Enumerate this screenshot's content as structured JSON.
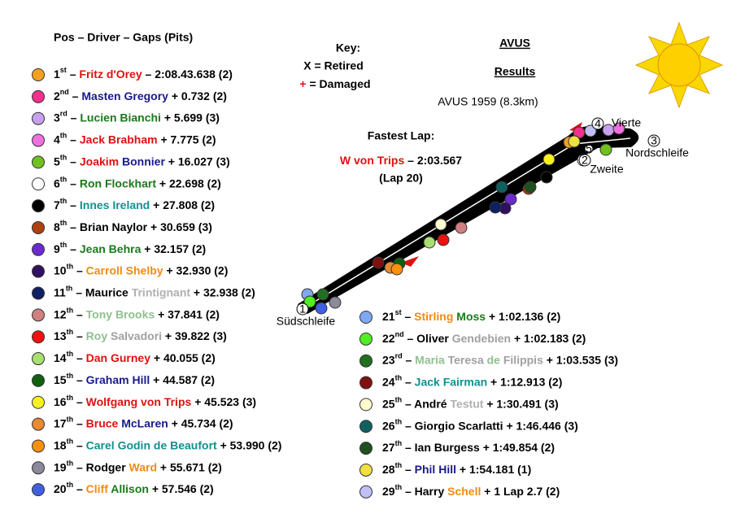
{
  "header": "Pos – Driver – Gaps (Pits)",
  "separator": "–",
  "key": {
    "title": "Key:",
    "retired": "X = Retired",
    "damaged_symbol": "+",
    "damaged": "= Damaged",
    "damaged_color": "#e01010"
  },
  "title": "AVUS",
  "title2": "Results",
  "subtitle": "AVUS 1959 (8.3km)",
  "fastest_lap": {
    "label": "Fastest Lap:",
    "driver": "W von Trips",
    "driver_color": "#e01010",
    "time": "– 2:03.567",
    "lap": "(Lap 20)"
  },
  "track_labels": {
    "south": "Südschleife",
    "north": "Nordschleife",
    "second": "Zweite",
    "fourth": "Vierte",
    "corners": [
      "1",
      "2",
      "3",
      "4",
      "5"
    ]
  },
  "results": [
    {
      "pos": 1,
      "suffix": "st",
      "name": [
        {
          "text": "Fritz d'Orey",
          "color": "#e01010"
        }
      ],
      "gap": "– 2:08.43.638 (2)",
      "marker": "#f5a020"
    },
    {
      "pos": 2,
      "suffix": "nd",
      "name": [
        {
          "text": "Masten Gregory",
          "color": "#1a1a8c"
        }
      ],
      "gap": "+ 0.732 (2)",
      "marker": "#f0308a"
    },
    {
      "pos": 3,
      "suffix": "rd",
      "name": [
        {
          "text": "Lucien Bianchi",
          "color": "#1a7a1a"
        }
      ],
      "gap": "+ 5.699 (3)",
      "marker": "#c8a0f0"
    },
    {
      "pos": 4,
      "suffix": "th",
      "name": [
        {
          "text": "Jack Brabham",
          "color": "#e01010"
        }
      ],
      "gap": "+ 7.775 (2)",
      "marker": "#f070e0"
    },
    {
      "pos": 5,
      "suffix": "th",
      "name": [
        {
          "text": "Joakim",
          "color": "#e01010"
        },
        {
          "text": "Bonnier",
          "color": "#1a1a8c"
        }
      ],
      "gap": "+ 16.027 (3)",
      "marker": "#70c020"
    },
    {
      "pos": 6,
      "suffix": "th",
      "name": [
        {
          "text": "Ron Flockhart",
          "color": "#1a7a1a"
        }
      ],
      "gap": "+ 22.698 (2)",
      "marker": "#ffffff"
    },
    {
      "pos": 7,
      "suffix": "th",
      "name": [
        {
          "text": "Innes Ireland",
          "color": "#109090"
        }
      ],
      "gap": "+ 27.808 (2)",
      "marker": "#000000"
    },
    {
      "pos": 8,
      "suffix": "th",
      "name": [
        {
          "text": "Brian Naylor",
          "color": "#000000"
        }
      ],
      "gap": "+ 30.659 (3)",
      "marker": "#b04010"
    },
    {
      "pos": 9,
      "suffix": "th",
      "name": [
        {
          "text": "Jean Behra",
          "color": "#1a7a1a"
        }
      ],
      "gap": "+ 32.157 (2)",
      "marker": "#6a2ad0"
    },
    {
      "pos": 10,
      "suffix": "th",
      "name": [
        {
          "text": "Carroll Shelby",
          "color": "#f08c10"
        }
      ],
      "gap": "+ 32.930 (2)",
      "marker": "#301060"
    },
    {
      "pos": 11,
      "suffix": "th",
      "name": [
        {
          "text": "Maurice",
          "color": "#000000"
        },
        {
          "text": "Trintignant",
          "color": "#b0b0b0"
        }
      ],
      "gap": "+ 32.938 (2)",
      "marker": "#102060"
    },
    {
      "pos": 12,
      "suffix": "th",
      "name": [
        {
          "text": "Tony Brooks",
          "color": "#90c090"
        }
      ],
      "gap": "+ 37.841 (2)",
      "marker": "#d08080"
    },
    {
      "pos": 13,
      "suffix": "th",
      "name": [
        {
          "text": "Roy",
          "color": "#90c090"
        },
        {
          "text": "Salvadori",
          "color": "#a0a0a0"
        }
      ],
      "gap": "+ 39.822 (3)",
      "marker": "#f01010"
    },
    {
      "pos": 14,
      "suffix": "th",
      "name": [
        {
          "text": "Dan Gurney",
          "color": "#e01010"
        }
      ],
      "gap": "+ 40.055 (2)",
      "marker": "#a8e070"
    },
    {
      "pos": 15,
      "suffix": "th",
      "name": [
        {
          "text": "Graham Hill",
          "color": "#1a1a8c"
        }
      ],
      "gap": "+ 44.587 (2)",
      "marker": "#106010"
    },
    {
      "pos": 16,
      "suffix": "th",
      "name": [
        {
          "text": "Wolfgang von Trips",
          "color": "#e01010"
        }
      ],
      "gap": "+ 45.523 (3)",
      "marker": "#f8f020"
    },
    {
      "pos": 17,
      "suffix": "th",
      "name": [
        {
          "text": "Bruce",
          "color": "#e01010"
        },
        {
          "text": "McLaren",
          "color": "#1a1a8c"
        }
      ],
      "gap": "+ 45.734 (2)",
      "marker": "#e88a30"
    },
    {
      "pos": 18,
      "suffix": "th",
      "name": [
        {
          "text": "Carel Godin de Beaufort",
          "color": "#109090"
        }
      ],
      "gap": "+ 53.990 (2)",
      "marker": "#f89010"
    },
    {
      "pos": 19,
      "suffix": "th",
      "name": [
        {
          "text": "Rodger",
          "color": "#000000"
        },
        {
          "text": "Ward",
          "color": "#f08c10"
        }
      ],
      "gap": "+ 55.671 (2)",
      "marker": "#8a8a9a"
    },
    {
      "pos": 20,
      "suffix": "th",
      "name": [
        {
          "text": "Cliff",
          "color": "#f08c10"
        },
        {
          "text": "Allison",
          "color": "#1a7a1a"
        }
      ],
      "gap": "+ 57.546 (2)",
      "marker": "#4060e0"
    },
    {
      "pos": 21,
      "suffix": "st",
      "name": [
        {
          "text": "Stirling",
          "color": "#f08c10"
        },
        {
          "text": "Moss",
          "color": "#1a7a1a"
        }
      ],
      "gap": "+ 1:02.136 (2)",
      "marker": "#80a8f0"
    },
    {
      "pos": 22,
      "suffix": "nd",
      "name": [
        {
          "text": "Oliver",
          "color": "#000000"
        },
        {
          "text": "Gendebien",
          "color": "#a0a0a0"
        }
      ],
      "gap": "+ 1:02.183 (2)",
      "marker": "#50f020"
    },
    {
      "pos": 23,
      "suffix": "rd",
      "name": [
        {
          "text": "Maria",
          "color": "#90c090"
        },
        {
          "text": "Teresa",
          "color": "#a0a0a0"
        },
        {
          "text": "de",
          "color": "#90c090"
        },
        {
          "text": "Filippis",
          "color": "#a0a0a0"
        }
      ],
      "gap": "+ 1:03.535 (3)",
      "marker": "#207020"
    },
    {
      "pos": 24,
      "suffix": "th",
      "name": [
        {
          "text": "Jack Fairman",
          "color": "#109090"
        }
      ],
      "gap": "+ 1:12.913 (2)",
      "marker": "#801010"
    },
    {
      "pos": 25,
      "suffix": "th",
      "name": [
        {
          "text": "André",
          "color": "#000000"
        },
        {
          "text": "Testut",
          "color": "#b0b0b0"
        }
      ],
      "gap": "+ 1:30.491 (3)",
      "marker": "#fffad0"
    },
    {
      "pos": 26,
      "suffix": "th",
      "name": [
        {
          "text": "Giorgio Scarlatti",
          "color": "#000000"
        }
      ],
      "gap": "+ 1:46.446 (3)",
      "marker": "#106060"
    },
    {
      "pos": 27,
      "suffix": "th",
      "name": [
        {
          "text": "Ian Burgess",
          "color": "#000000"
        }
      ],
      "gap": "+ 1:49.854 (2)",
      "marker": "#205020"
    },
    {
      "pos": 28,
      "suffix": "th",
      "name": [
        {
          "text": "Phil Hill",
          "color": "#1a1a8c"
        }
      ],
      "gap": "+ 1:54.181 (1)",
      "marker": "#f0e040"
    },
    {
      "pos": 29,
      "suffix": "th",
      "name": [
        {
          "text": "Harry",
          "color": "#000000"
        },
        {
          "text": "Schell",
          "color": "#f08c10"
        }
      ],
      "gap": "+ 1 Lap 2.7 (2)",
      "marker": "#c0c0f8"
    }
  ]
}
